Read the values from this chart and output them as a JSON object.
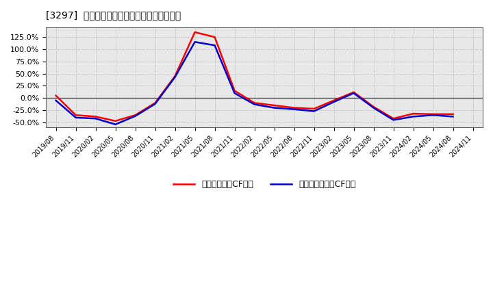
{
  "title": "[3297]  流動負債キャッシュフロー比率の推移",
  "x_labels": [
    "2019/08",
    "2019/11",
    "2020/02",
    "2020/05",
    "2020/08",
    "2020/11",
    "2021/02",
    "2021/05",
    "2021/08",
    "2021/11",
    "2022/02",
    "2022/05",
    "2022/08",
    "2022/11",
    "2023/02",
    "2023/05",
    "2023/08",
    "2023/11",
    "2024/02",
    "2024/05",
    "2024/08",
    "2024/11"
  ],
  "operating_cf": [
    5.0,
    -35.0,
    -38.0,
    -47.0,
    -35.0,
    -10.0,
    45.0,
    135.0,
    125.0,
    15.0,
    -10.0,
    -15.0,
    -20.0,
    -22.0,
    -5.0,
    12.0,
    -18.0,
    -42.0,
    -32.0,
    -33.0,
    -33.0,
    null
  ],
  "free_cf": [
    -5.0,
    -40.0,
    -42.0,
    -54.0,
    -37.0,
    -12.0,
    43.0,
    115.0,
    108.0,
    10.0,
    -13.0,
    -20.0,
    -23.0,
    -27.0,
    -8.0,
    10.0,
    -20.0,
    -45.0,
    -38.0,
    -35.0,
    -38.0,
    null
  ],
  "operating_color": "#ff0000",
  "free_color": "#0000cc",
  "plot_bg_color": "#e8e8e8",
  "fig_bg_color": "#ffffff",
  "grid_color": "#aaaaaa",
  "ylim": [
    -60,
    145
  ],
  "yticks": [
    -50.0,
    -25.0,
    0.0,
    25.0,
    50.0,
    75.0,
    100.0,
    125.0
  ],
  "legend_operating": "流動負債営業CF比率",
  "legend_free": "流動負債フリーCF比率"
}
